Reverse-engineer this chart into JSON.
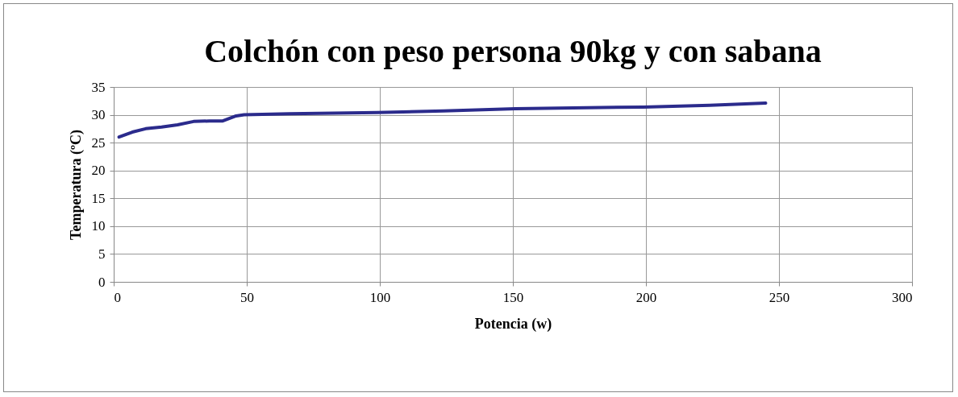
{
  "chart_data": {
    "type": "line",
    "title": "Colchón con peso persona 90kg y con sabana",
    "xlabel": "Potencia (w)",
    "ylabel": "Temperatura (ºC)",
    "series": [
      {
        "color": "#2b2b8c",
        "x": [
          2,
          7,
          12,
          18,
          24,
          30,
          36,
          41,
          46,
          49,
          66,
          99,
          124,
          151,
          199,
          224,
          245
        ],
        "values": [
          26.0,
          26.9,
          27.5,
          27.8,
          28.2,
          28.8,
          28.9,
          28.9,
          29.8,
          30.0,
          30.2,
          30.4,
          30.7,
          31.1,
          31.4,
          31.7,
          32.1
        ]
      }
    ],
    "xlim": [
      0,
      300
    ],
    "xticks": [
      0,
      50,
      100,
      150,
      200,
      250,
      300
    ],
    "ylim": [
      0,
      35
    ],
    "yticks": [
      0,
      5,
      10,
      15,
      20,
      25,
      30,
      35
    ],
    "grid": true,
    "marker": "none",
    "line_style": "solid"
  }
}
